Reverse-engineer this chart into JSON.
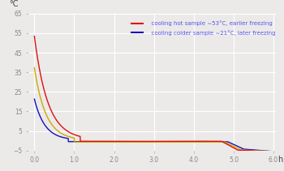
{
  "title_ylabel": "°C",
  "xlabel": "h",
  "xlim": [
    -0.15,
    6.05
  ],
  "ylim": [
    -5,
    65
  ],
  "yticks": [
    -5,
    5,
    15,
    25,
    35,
    45,
    55,
    65
  ],
  "xticks": [
    0.0,
    1.0,
    2.0,
    3.0,
    4.0,
    5.0,
    6.0
  ],
  "legend1_label": "  cooling hot sample ∼53°C, earlier freezing",
  "legend2_label": "  cooling colder sample ∼21°C, later freezing",
  "hot_color": "#dd1111",
  "cold_color": "#1111bb",
  "middle_color": "#ccaa00",
  "background_color": "#ece9e9",
  "grid_color": "#ffffff",
  "text_color": "#5555ee",
  "tick_color": "#888888",
  "label_color": "#444444"
}
